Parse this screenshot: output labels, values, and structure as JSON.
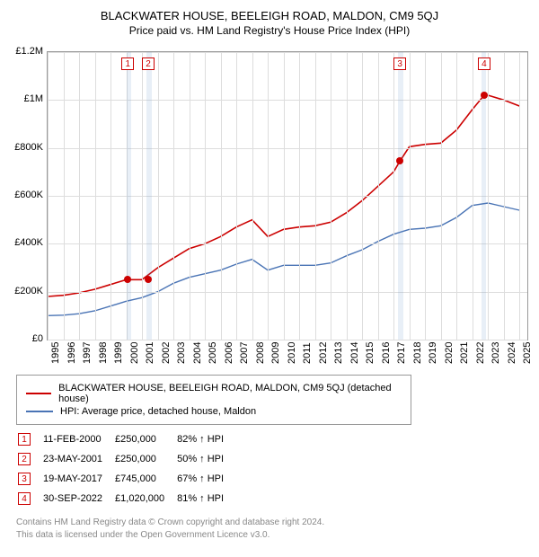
{
  "title": "BLACKWATER HOUSE, BEELEIGH ROAD, MALDON, CM9 5QJ",
  "subtitle": "Price paid vs. HM Land Registry's House Price Index (HPI)",
  "chart": {
    "type": "line",
    "x_min": 1995,
    "x_max": 2025.5,
    "y_min": 0,
    "y_max": 1200000,
    "y_ticks": [
      0,
      200000,
      400000,
      600000,
      800000,
      1000000,
      1200000
    ],
    "y_tick_labels": [
      "£0",
      "£200K",
      "£400K",
      "£600K",
      "£800K",
      "£1M",
      "£1.2M"
    ],
    "x_ticks": [
      1995,
      1996,
      1997,
      1998,
      1999,
      2000,
      2001,
      2002,
      2003,
      2004,
      2005,
      2006,
      2007,
      2008,
      2009,
      2010,
      2011,
      2012,
      2013,
      2014,
      2015,
      2016,
      2017,
      2018,
      2019,
      2020,
      2021,
      2022,
      2023,
      2024,
      2025
    ],
    "grid_color": "#dddddd",
    "background_color": "#ffffff",
    "border_color": "#999999",
    "bands": [
      {
        "from": 2000.0,
        "to": 2000.3
      },
      {
        "from": 2001.3,
        "to": 2001.6
      },
      {
        "from": 2017.3,
        "to": 2017.6
      },
      {
        "from": 2022.6,
        "to": 2022.9
      }
    ],
    "band_color": "rgba(100,150,200,0.15)",
    "markers": [
      {
        "n": "1",
        "x": 2000.1,
        "price": 250000
      },
      {
        "n": "2",
        "x": 2001.4,
        "price": 250000
      },
      {
        "n": "3",
        "x": 2017.4,
        "price": 745000
      },
      {
        "n": "4",
        "x": 2022.75,
        "price": 1020000
      }
    ],
    "marker_color": "#cc0000",
    "series": [
      {
        "name": "BLACKWATER HOUSE, BEELEIGH ROAD, MALDON, CM9 5QJ (detached house)",
        "color": "#cc0000",
        "line_width": 1.6,
        "points": [
          [
            1995,
            180000
          ],
          [
            1996,
            185000
          ],
          [
            1997,
            195000
          ],
          [
            1998,
            210000
          ],
          [
            1999,
            230000
          ],
          [
            2000,
            250000
          ],
          [
            2001,
            250000
          ],
          [
            2002,
            300000
          ],
          [
            2003,
            340000
          ],
          [
            2004,
            380000
          ],
          [
            2005,
            400000
          ],
          [
            2006,
            430000
          ],
          [
            2007,
            470000
          ],
          [
            2008,
            500000
          ],
          [
            2009,
            430000
          ],
          [
            2010,
            460000
          ],
          [
            2011,
            470000
          ],
          [
            2012,
            475000
          ],
          [
            2013,
            490000
          ],
          [
            2014,
            530000
          ],
          [
            2015,
            580000
          ],
          [
            2016,
            640000
          ],
          [
            2017,
            700000
          ],
          [
            2017.4,
            745000
          ],
          [
            2018,
            805000
          ],
          [
            2019,
            815000
          ],
          [
            2020,
            820000
          ],
          [
            2021,
            875000
          ],
          [
            2022,
            960000
          ],
          [
            2022.75,
            1020000
          ],
          [
            2023,
            1020000
          ],
          [
            2024,
            1000000
          ],
          [
            2025,
            975000
          ]
        ]
      },
      {
        "name": "HPI: Average price, detached house, Maldon",
        "color": "#4a74b5",
        "line_width": 1.4,
        "points": [
          [
            1995,
            100000
          ],
          [
            1996,
            102000
          ],
          [
            1997,
            108000
          ],
          [
            1998,
            120000
          ],
          [
            1999,
            140000
          ],
          [
            2000,
            160000
          ],
          [
            2001,
            175000
          ],
          [
            2002,
            200000
          ],
          [
            2003,
            235000
          ],
          [
            2004,
            260000
          ],
          [
            2005,
            275000
          ],
          [
            2006,
            290000
          ],
          [
            2007,
            315000
          ],
          [
            2008,
            335000
          ],
          [
            2009,
            290000
          ],
          [
            2010,
            310000
          ],
          [
            2011,
            310000
          ],
          [
            2012,
            310000
          ],
          [
            2013,
            320000
          ],
          [
            2014,
            350000
          ],
          [
            2015,
            375000
          ],
          [
            2016,
            410000
          ],
          [
            2017,
            440000
          ],
          [
            2018,
            460000
          ],
          [
            2019,
            465000
          ],
          [
            2020,
            475000
          ],
          [
            2021,
            510000
          ],
          [
            2022,
            560000
          ],
          [
            2023,
            570000
          ],
          [
            2024,
            555000
          ],
          [
            2025,
            540000
          ]
        ]
      }
    ]
  },
  "legend": {
    "items": [
      {
        "label": "BLACKWATER HOUSE, BEELEIGH ROAD, MALDON, CM9 5QJ (detached house)",
        "color": "#cc0000"
      },
      {
        "label": "HPI: Average price, detached house, Maldon",
        "color": "#4a74b5"
      }
    ]
  },
  "sales": [
    {
      "n": "1",
      "date": "11-FEB-2000",
      "price": "£250,000",
      "delta": "82%",
      "arrow": "↑",
      "suffix": "HPI"
    },
    {
      "n": "2",
      "date": "23-MAY-2001",
      "price": "£250,000",
      "delta": "50%",
      "arrow": "↑",
      "suffix": "HPI"
    },
    {
      "n": "3",
      "date": "19-MAY-2017",
      "price": "£745,000",
      "delta": "67%",
      "arrow": "↑",
      "suffix": "HPI"
    },
    {
      "n": "4",
      "date": "30-SEP-2022",
      "price": "£1,020,000",
      "delta": "81%",
      "arrow": "↑",
      "suffix": "HPI"
    }
  ],
  "footer": {
    "line1": "Contains HM Land Registry data © Crown copyright and database right 2024.",
    "line2": "This data is licensed under the Open Government Licence v3.0."
  }
}
